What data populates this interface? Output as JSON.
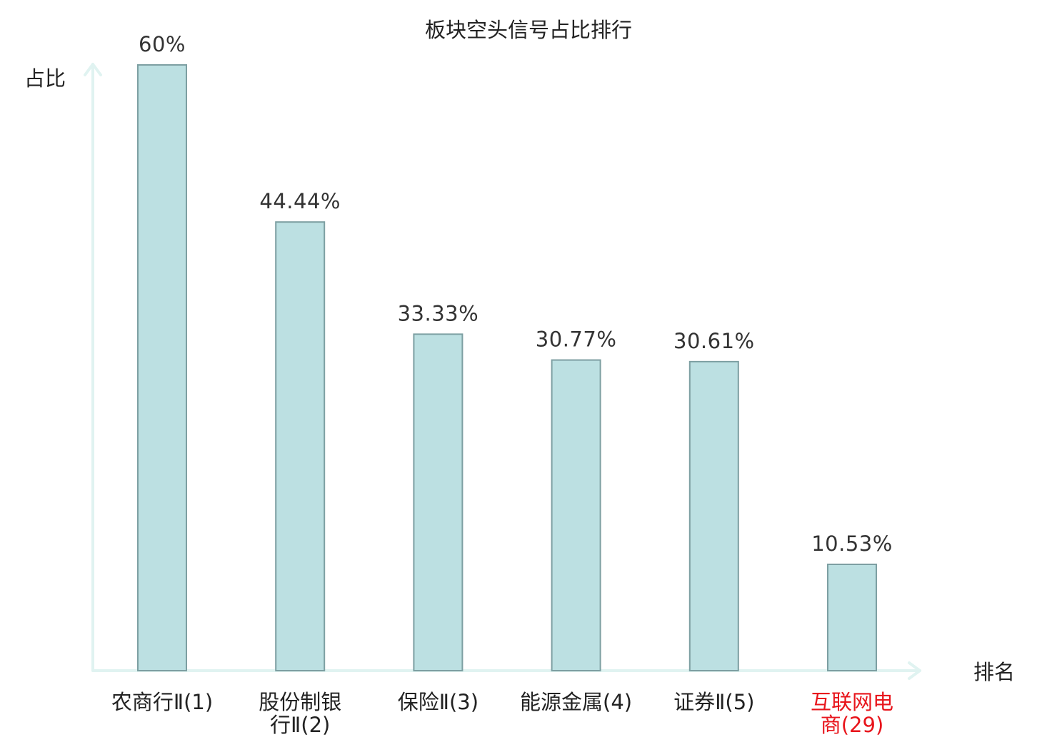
{
  "chart_data": {
    "type": "bar",
    "title": "板块空头信号占比排行",
    "xlabel": "排名",
    "ylabel": "占比",
    "categories": [
      {
        "lines": [
          "农商行Ⅱ(1)"
        ],
        "highlight": false
      },
      {
        "lines": [
          "股份制银",
          "行Ⅱ(2)"
        ],
        "highlight": false
      },
      {
        "lines": [
          "保险Ⅱ(3)"
        ],
        "highlight": false
      },
      {
        "lines": [
          "能源金属(4)"
        ],
        "highlight": false
      },
      {
        "lines": [
          "证券Ⅱ(5)"
        ],
        "highlight": false
      },
      {
        "lines": [
          "互联网电",
          "商(29)"
        ],
        "highlight": true
      }
    ],
    "values": [
      60,
      44.44,
      33.33,
      30.77,
      30.61,
      10.53
    ],
    "value_labels": [
      "60%",
      "44.44%",
      "33.33%",
      "30.77%",
      "30.61%",
      "10.53%"
    ],
    "ylim": [
      0,
      60
    ],
    "grid": false,
    "legend": "none",
    "colors": {
      "bar_fill": "#bce0e2",
      "bar_stroke": "#7d9fa2",
      "axis": "#e0f3f1",
      "text": "#222222",
      "value_text": "#333333",
      "highlight_text": "#e8141b"
    }
  }
}
